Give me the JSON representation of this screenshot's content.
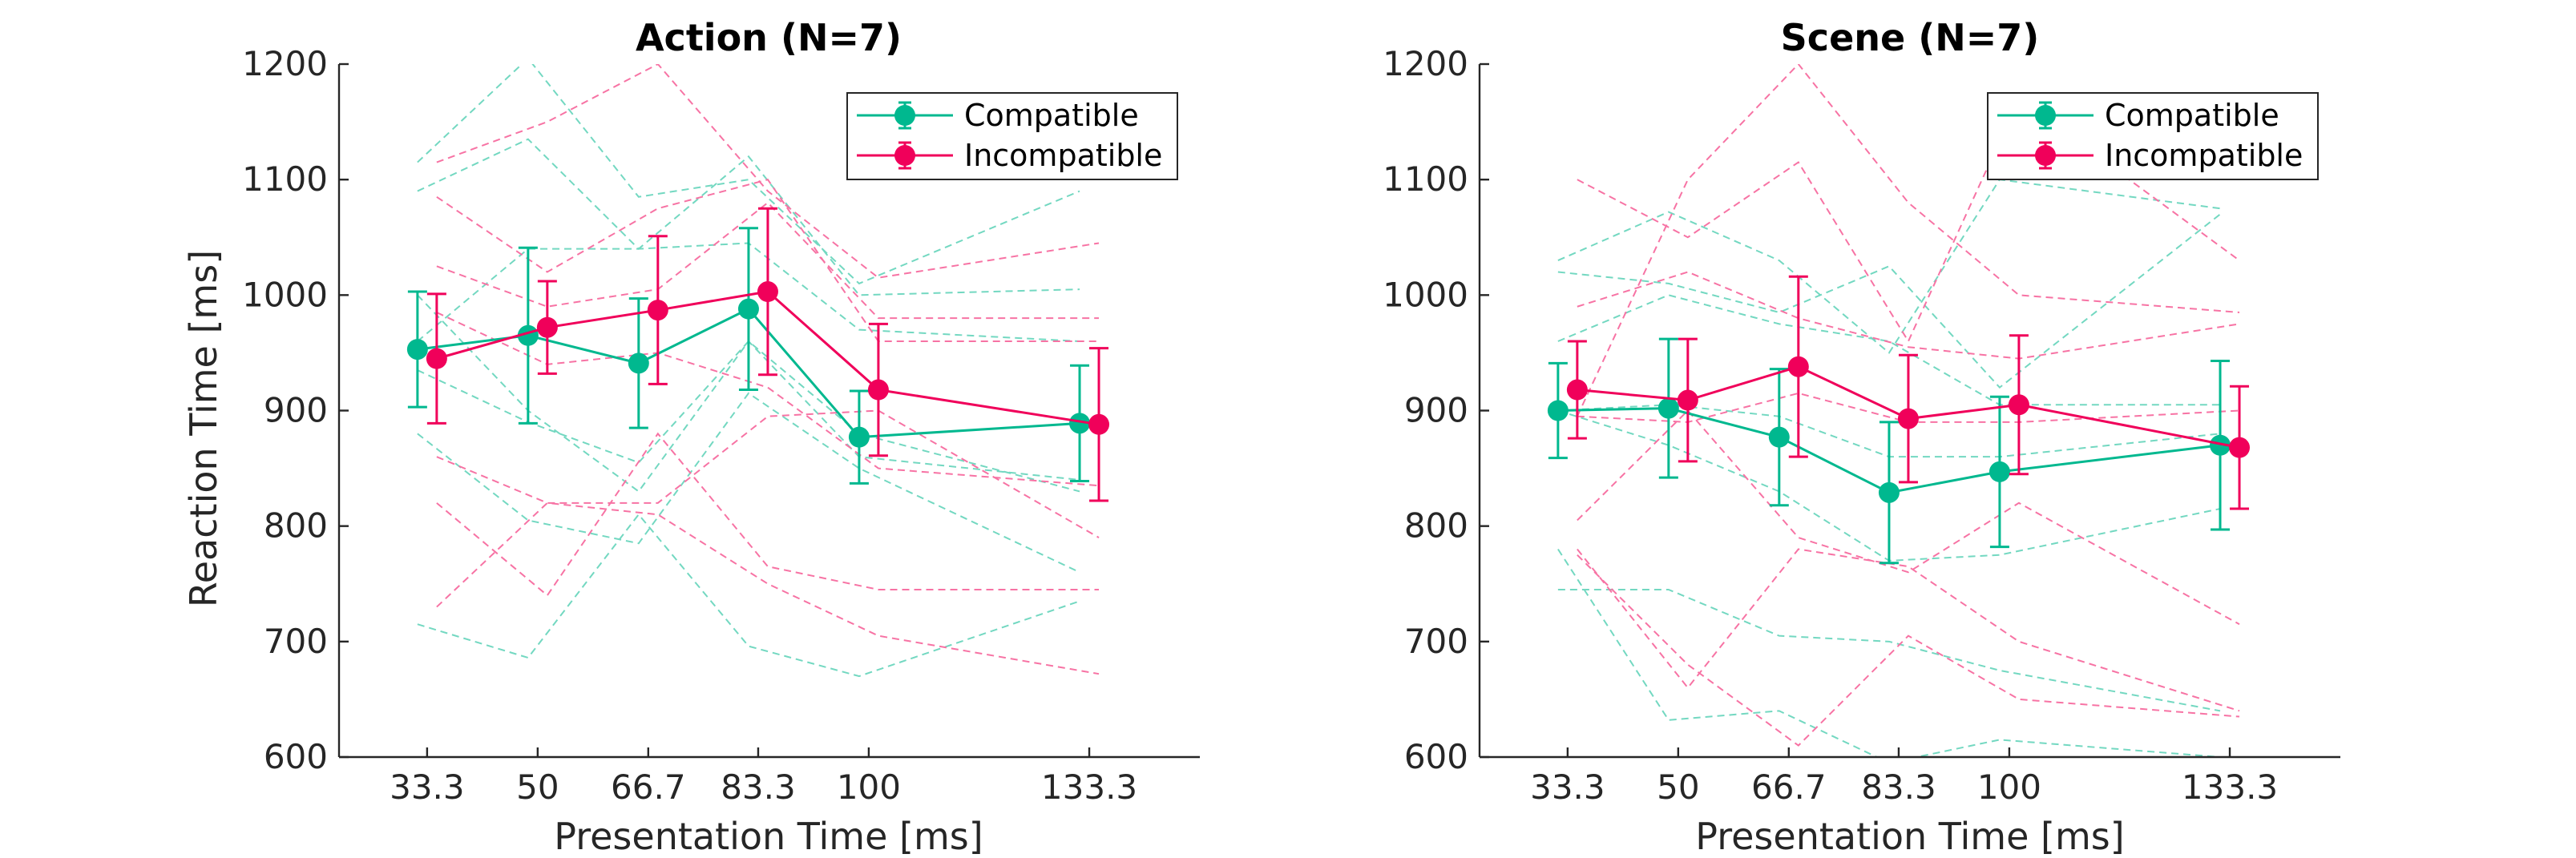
{
  "colors": {
    "compatible": "#00B88F",
    "incompatible": "#F0005A",
    "axis": "#262626"
  },
  "chart_data": [
    {
      "type": "line",
      "title": "Action (N=7)",
      "xlabel": "Presentation Time [ms]",
      "ylabel": "Reaction Time [ms]",
      "x": [
        33.3,
        50,
        66.7,
        83.3,
        100,
        133.3
      ],
      "x_tick_labels": [
        "33.3",
        "50",
        "66.7",
        "83.3",
        "100",
        "133.3"
      ],
      "ylim": [
        600,
        1200
      ],
      "y_ticks": [
        600,
        700,
        800,
        900,
        1000,
        1100,
        1200
      ],
      "legend_position": "top-right",
      "grid": false,
      "series": [
        {
          "name": "Compatible",
          "values": [
            953,
            965,
            941,
            988,
            877,
            889
          ],
          "error": [
            50,
            76,
            56,
            70,
            40,
            50
          ]
        },
        {
          "name": "Incompatible",
          "values": [
            945,
            972,
            987,
            1003,
            918,
            888
          ],
          "error": [
            56,
            40,
            64,
            72,
            57,
            66
          ]
        }
      ],
      "subjects": {
        "compatible": [
          [
            1115,
            1205,
            1085,
            1100,
            1010,
            1090
          ],
          [
            1090,
            1135,
            1040,
            1120,
            1000,
            1005
          ],
          [
            960,
            1040,
            1040,
            1045,
            970,
            960
          ],
          [
            935,
            890,
            855,
            960,
            880,
            830
          ],
          [
            1000,
            900,
            830,
            960,
            860,
            840
          ],
          [
            880,
            805,
            785,
            915,
            850,
            760
          ],
          [
            715,
            686,
            810,
            696,
            670,
            735
          ]
        ],
        "incompatible": [
          [
            1115,
            1150,
            1200,
            1090,
            1015,
            1045
          ],
          [
            1085,
            1020,
            1075,
            1100,
            960,
            960
          ],
          [
            1025,
            990,
            1005,
            1080,
            980,
            980
          ],
          [
            985,
            940,
            950,
            920,
            850,
            835
          ],
          [
            860,
            820,
            820,
            895,
            900,
            790
          ],
          [
            820,
            740,
            880,
            765,
            745,
            745
          ],
          [
            730,
            820,
            810,
            750,
            705,
            672
          ]
        ]
      }
    },
    {
      "type": "line",
      "title": "Scene (N=7)",
      "xlabel": "Presentation Time [ms]",
      "ylabel": "",
      "x": [
        33.3,
        50,
        66.7,
        83.3,
        100,
        133.3
      ],
      "x_tick_labels": [
        "33.3",
        "50",
        "66.7",
        "83.3",
        "100",
        "133.3"
      ],
      "ylim": [
        600,
        1200
      ],
      "y_ticks": [
        600,
        700,
        800,
        900,
        1000,
        1100,
        1200
      ],
      "legend_position": "top-right",
      "grid": false,
      "series": [
        {
          "name": "Compatible",
          "values": [
            900,
            902,
            877,
            829,
            847,
            870
          ],
          "error": [
            41,
            60,
            59,
            61,
            65,
            73
          ]
        },
        {
          "name": "Incompatible",
          "values": [
            918,
            909,
            938,
            893,
            905,
            868
          ],
          "error": [
            42,
            53,
            78,
            55,
            60,
            53
          ]
        }
      ],
      "subjects": {
        "compatible": [
          [
            1030,
            1072,
            1030,
            950,
            1100,
            1075
          ],
          [
            1020,
            1010,
            985,
            1025,
            920,
            1070
          ],
          [
            960,
            1000,
            975,
            960,
            905,
            905
          ],
          [
            900,
            905,
            895,
            860,
            860,
            880
          ],
          [
            900,
            870,
            830,
            770,
            775,
            815
          ],
          [
            745,
            745,
            705,
            700,
            675,
            640
          ],
          [
            780,
            632,
            640,
            595,
            615,
            600
          ]
        ],
        "incompatible": [
          [
            1100,
            1050,
            1115,
            960,
            1170,
            1030
          ],
          [
            895,
            1100,
            1200,
            1080,
            1000,
            985
          ],
          [
            990,
            1020,
            980,
            955,
            945,
            975
          ],
          [
            895,
            890,
            915,
            890,
            890,
            900
          ],
          [
            805,
            900,
            790,
            760,
            820,
            715
          ],
          [
            775,
            680,
            610,
            705,
            650,
            635
          ],
          [
            780,
            660,
            780,
            765,
            700,
            640
          ]
        ]
      }
    }
  ]
}
